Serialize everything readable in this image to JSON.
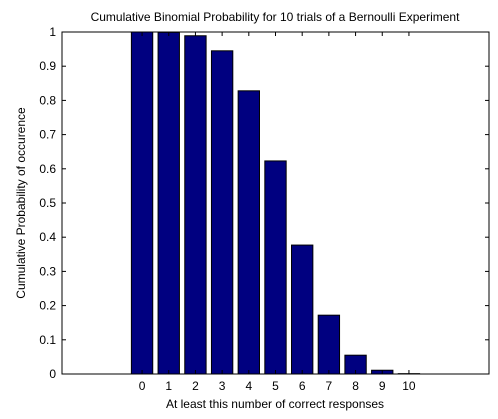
{
  "chart_data": {
    "type": "bar",
    "title": "Cumulative Binomial Probability for 10 trials of a Bernoulli Experiment",
    "xlabel": "At least this number of correct responses",
    "ylabel": "Cumulative Probability of occurence",
    "categories": [
      "0",
      "1",
      "2",
      "3",
      "4",
      "5",
      "6",
      "7",
      "8",
      "9",
      "10"
    ],
    "x": [
      0,
      1,
      2,
      3,
      4,
      5,
      6,
      7,
      8,
      9,
      10
    ],
    "values": [
      1.0,
      0.999,
      0.989,
      0.945,
      0.828,
      0.623,
      0.377,
      0.172,
      0.055,
      0.011,
      0.001
    ],
    "xlim": [
      -3,
      13
    ],
    "ylim": [
      0,
      1
    ],
    "yticks": [
      "0",
      "0.1",
      "0.2",
      "0.3",
      "0.4",
      "0.5",
      "0.6",
      "0.7",
      "0.8",
      "0.9",
      "1"
    ],
    "ytick_values": [
      0,
      0.1,
      0.2,
      0.3,
      0.4,
      0.5,
      0.6,
      0.7,
      0.8,
      0.9,
      1
    ],
    "grid": false,
    "legend": "none",
    "bar_color": "#000080",
    "edge_color": "#000000"
  }
}
